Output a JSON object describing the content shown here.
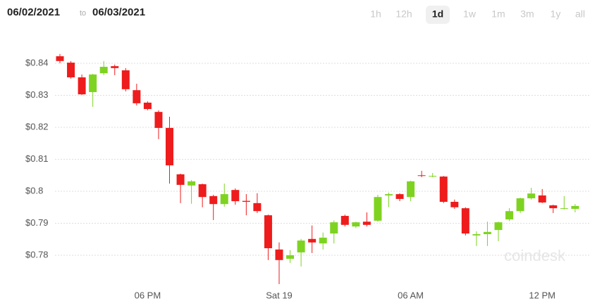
{
  "header": {
    "from": "06/02/2021",
    "to_word": "to",
    "to": "06/03/2021",
    "ranges": [
      "1h",
      "12h",
      "1d",
      "1w",
      "1m",
      "3m",
      "1y",
      "all"
    ],
    "selected_range": "1d"
  },
  "chart_data": {
    "type": "candlestick",
    "watermark": "coindesk",
    "categories": [
      null,
      null,
      null,
      null,
      null,
      null,
      null,
      null,
      "06 PM",
      null,
      null,
      null,
      null,
      null,
      null,
      null,
      null,
      null,
      null,
      null,
      "Sat 19",
      null,
      null,
      null,
      null,
      null,
      null,
      null,
      null,
      null,
      null,
      null,
      "06 AM",
      null,
      null,
      null,
      null,
      null,
      null,
      null,
      null,
      null,
      null,
      null,
      "12 PM",
      null,
      null,
      null
    ],
    "open": [
      0.8422,
      0.8402,
      0.8356,
      0.831,
      0.8369,
      0.8391,
      0.8378,
      0.8316,
      0.8277,
      0.8248,
      0.8198,
      0.8053,
      0.8018,
      0.8022,
      0.7985,
      0.796,
      0.8004,
      0.797,
      0.7963,
      0.7925,
      0.7818,
      0.7789,
      0.7809,
      0.7851,
      0.7837,
      0.7868,
      0.7923,
      0.789,
      0.7905,
      0.7908,
      0.7987,
      0.7991,
      0.7982,
      0.805,
      0.8046,
      0.8046,
      0.7967,
      0.7947,
      0.7862,
      0.7866,
      0.7879,
      0.7912,
      0.7938,
      0.7978,
      0.7987,
      0.7956,
      0.7945,
      0.7945
    ],
    "high": [
      0.8429,
      0.8407,
      0.8365,
      0.8367,
      0.8407,
      0.8396,
      0.8385,
      0.8336,
      0.8281,
      0.8253,
      0.8233,
      0.8055,
      0.8035,
      0.8024,
      0.7989,
      0.8024,
      0.8009,
      0.7991,
      0.7994,
      0.7927,
      0.784,
      0.7816,
      0.7851,
      0.7893,
      0.7871,
      0.7909,
      0.7927,
      0.7905,
      0.7934,
      0.7989,
      0.7996,
      0.7994,
      0.8033,
      0.8064,
      0.8057,
      0.8048,
      0.7974,
      0.795,
      0.7875,
      0.7905,
      0.7905,
      0.7947,
      0.798,
      0.8011,
      0.8007,
      0.7958,
      0.7985,
      0.796
    ],
    "low": [
      0.84,
      0.8352,
      0.8301,
      0.8264,
      0.8363,
      0.8363,
      0.8312,
      0.8268,
      0.8253,
      0.8163,
      0.8024,
      0.7963,
      0.7961,
      0.795,
      0.791,
      0.7952,
      0.7958,
      0.7925,
      0.7932,
      0.7785,
      0.771,
      0.7776,
      0.7765,
      0.7807,
      0.7818,
      0.7837,
      0.789,
      0.7885,
      0.789,
      0.7905,
      0.795,
      0.7969,
      0.7969,
      0.8044,
      0.8044,
      0.7963,
      0.7945,
      0.7862,
      0.7829,
      0.7829,
      0.7844,
      0.7907,
      0.7932,
      0.7974,
      0.7963,
      0.7932,
      0.7943,
      0.7934
    ],
    "close": [
      0.8407,
      0.8356,
      0.8303,
      0.8365,
      0.8389,
      0.8385,
      0.8319,
      0.8275,
      0.8257,
      0.8198,
      0.8081,
      0.802,
      0.8031,
      0.7982,
      0.796,
      0.7991,
      0.7969,
      0.7967,
      0.7938,
      0.7822,
      0.7785,
      0.78,
      0.7846,
      0.784,
      0.7855,
      0.7903,
      0.7895,
      0.7903,
      0.7895,
      0.7982,
      0.7991,
      0.7976,
      0.8031,
      0.8048,
      0.8048,
      0.7967,
      0.795,
      0.7868,
      0.7866,
      0.7873,
      0.7903,
      0.7938,
      0.7978,
      0.7993,
      0.7965,
      0.7947,
      0.7947,
      0.7954
    ],
    "up_color": "#7ed321",
    "down_color": "#ee1c1c",
    "ylim": [
      0.77,
      0.848
    ],
    "yticks": [
      {
        "value": 0.78,
        "label": "$0.78"
      },
      {
        "value": 0.79,
        "label": "$0.79"
      },
      {
        "value": 0.8,
        "label": "$0.8"
      },
      {
        "value": 0.81,
        "label": "$0.81"
      },
      {
        "value": 0.82,
        "label": "$0.82"
      },
      {
        "value": 0.83,
        "label": "$0.83"
      },
      {
        "value": 0.84,
        "label": "$0.84"
      }
    ],
    "grid": true
  }
}
